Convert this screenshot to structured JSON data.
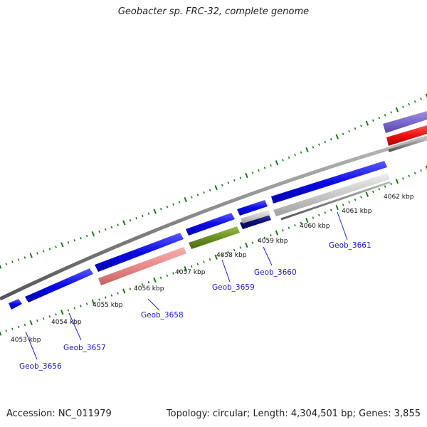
{
  "title": "Geobacter sp. FRC-32, complete genome",
  "footer": {
    "accession": "Accession: NC_011979",
    "summary": "Topology: circular; Length: 4,304,501 bp; Genes: 3,855"
  },
  "tick_labels": [
    "4053 kbp",
    "4054 kbp",
    "4055 kbp",
    "4056 kbp",
    "4057 kbp",
    "4058 kbp",
    "4059 kbp",
    "4060 kbp",
    "4061 kbp",
    "4062 kbp"
  ],
  "gene_labels": [
    "Geob_3656",
    "Geob_3657",
    "Geob_3658",
    "Geob_3659",
    "Geob_3660",
    "Geob_3661"
  ],
  "colors": {
    "cds": "#0a0ae6",
    "trna_like": "#e88a8a",
    "misc": "#6b8e23",
    "navy": "#10107a",
    "grey_feature": "#c8c8c8",
    "purple": "#7b68cc",
    "red": "#ee1111",
    "tick_green": "#1a7a1a",
    "backbone": "#888888",
    "label_blue": "#1818c8"
  }
}
